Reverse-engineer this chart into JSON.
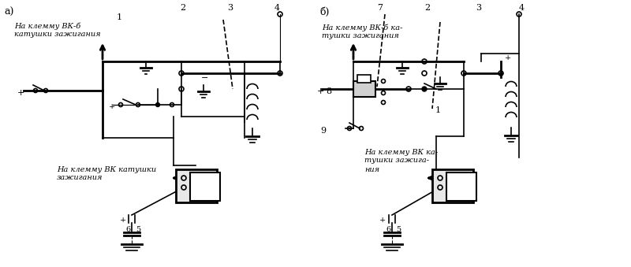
{
  "title": "",
  "bg_color": "#ffffff",
  "line_color": "#000000",
  "fig_width": 8.0,
  "fig_height": 3.39,
  "label_a": "а)",
  "label_b": "б)",
  "text_a1": "На клемму ВК-б",
  "text_a2": "катушки зажигания",
  "text_a3": "На клемму ВК катушки",
  "text_a4": "зажигания",
  "text_b1": "На клемму ВК-б ка-",
  "text_b2": "тушки зажигания",
  "text_b3": "На клемму ВК ка-",
  "text_b4": "тушки зажига-",
  "text_b5": "ния",
  "num_labels_a": [
    "1",
    "2",
    "3",
    "4"
  ],
  "num_labels_b": [
    "7",
    "2",
    "3",
    "4",
    "8",
    "9",
    "1"
  ],
  "font_size": 7.5
}
